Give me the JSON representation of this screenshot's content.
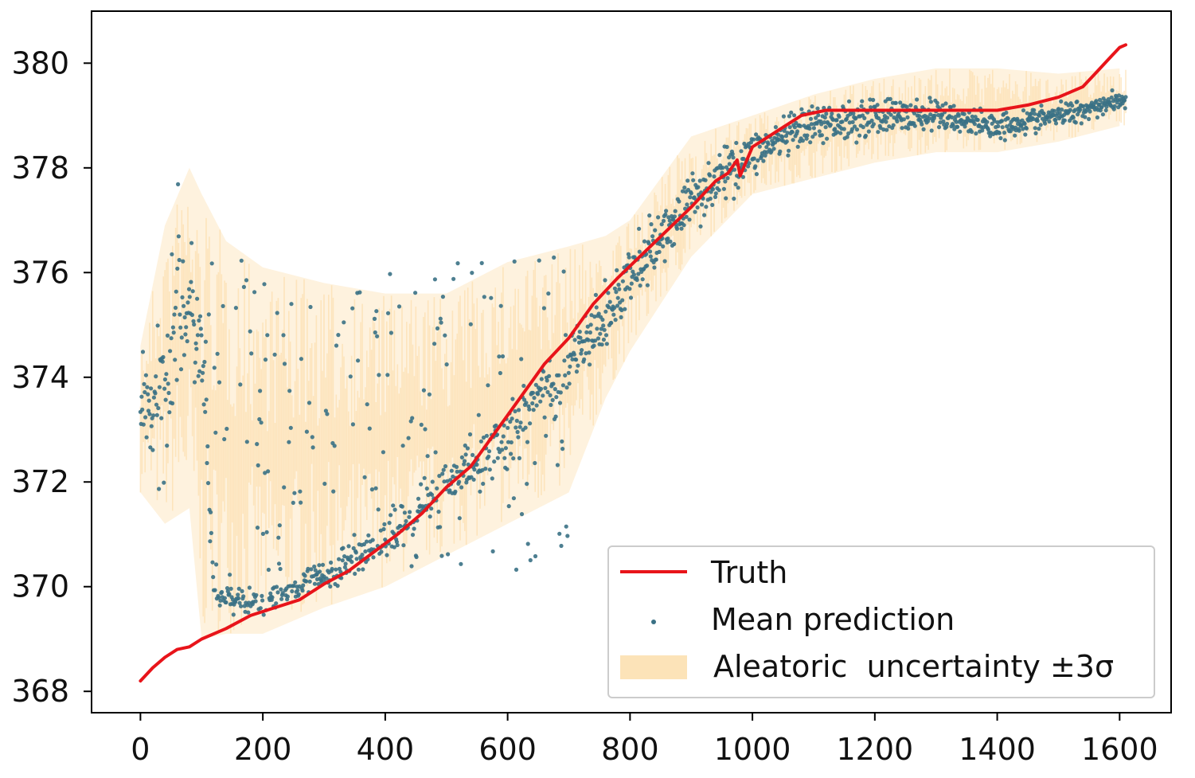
{
  "chart_data": {
    "type": "scatter",
    "title": "",
    "xlabel": "",
    "ylabel": "",
    "xlim": [
      -80,
      1640
    ],
    "ylim": [
      367.6,
      380.9
    ],
    "x_ticks": [
      0,
      200,
      400,
      600,
      800,
      1000,
      1200,
      1400,
      1600
    ],
    "x_tick_labels": [
      "0",
      "200",
      "400",
      "600",
      "800",
      "1000",
      "1200",
      "1400",
      "1600"
    ],
    "y_ticks": [
      368,
      370,
      372,
      374,
      376,
      378,
      380
    ],
    "y_tick_labels": [
      "368",
      "370",
      "372",
      "374",
      "376",
      "378",
      "380"
    ],
    "grid": false,
    "legend_position": "bottom-right",
    "legend": [
      {
        "key": "truth",
        "label": "Truth"
      },
      {
        "key": "mean",
        "label": "Mean prediction"
      },
      {
        "key": "aleatoric",
        "label": "Aleatoric  uncertainty ±3σ"
      }
    ],
    "colors": {
      "truth": "#e8141a",
      "mean": "#3a7185",
      "aleatoric": "#fbd9a0",
      "axis": "#000000",
      "legend_border": "#cccccc"
    },
    "series": [
      {
        "name": "Truth",
        "kind": "line",
        "x": [
          0,
          20,
          40,
          60,
          80,
          100,
          140,
          180,
          220,
          260,
          300,
          340,
          380,
          420,
          460,
          500,
          540,
          580,
          620,
          660,
          700,
          740,
          780,
          820,
          860,
          900,
          940,
          960,
          975,
          980,
          1000,
          1040,
          1080,
          1120,
          1200,
          1300,
          1400,
          1450,
          1500,
          1540,
          1560,
          1580,
          1600,
          1610
        ],
        "y": [
          368.2,
          368.45,
          368.65,
          368.8,
          368.85,
          369.0,
          369.2,
          369.45,
          369.6,
          369.75,
          370.05,
          370.3,
          370.65,
          371.0,
          371.4,
          371.9,
          372.3,
          372.95,
          373.6,
          374.25,
          374.75,
          375.4,
          375.9,
          376.35,
          376.8,
          377.25,
          377.75,
          377.9,
          378.15,
          377.85,
          378.4,
          378.7,
          379.0,
          379.1,
          379.1,
          379.1,
          379.1,
          379.2,
          379.35,
          379.55,
          379.8,
          380.05,
          380.3,
          380.35
        ]
      },
      {
        "name": "Mean prediction",
        "kind": "scatter",
        "count": 1600,
        "x_range": [
          0,
          1610
        ],
        "envelope": {
          "x": [
            0,
            30,
            60,
            80,
            100,
            120,
            200,
            300,
            400,
            500,
            600,
            700,
            760,
            800,
            900,
            1000,
            1100,
            1200,
            1300,
            1400,
            1500,
            1600
          ],
          "center": [
            373.7,
            373.2,
            375.6,
            375.2,
            374.6,
            369.8,
            369.7,
            370.2,
            370.9,
            371.9,
            372.9,
            374.2,
            375.1,
            375.9,
            377.4,
            378.3,
            378.8,
            379.0,
            379.0,
            378.8,
            379.0,
            379.3
          ],
          "spread": [
            0.7,
            1.3,
            1.4,
            1.2,
            1.1,
            0.2,
            0.2,
            0.25,
            0.3,
            0.35,
            0.5,
            0.6,
            0.55,
            0.45,
            0.45,
            0.35,
            0.3,
            0.3,
            0.25,
            0.2,
            0.2,
            0.15
          ]
        },
        "outlier_band": {
          "x_range": [
            100,
            700
          ],
          "y_range": [
            370.2,
            376.3
          ]
        }
      },
      {
        "name": "Aleatoric uncertainty ±3σ",
        "kind": "band",
        "x": [
          0,
          40,
          80,
          100,
          140,
          200,
          300,
          400,
          500,
          600,
          700,
          760,
          800,
          900,
          1000,
          1100,
          1200,
          1300,
          1400,
          1500,
          1600
        ],
        "lower": [
          371.8,
          371.2,
          371.5,
          369.0,
          369.1,
          369.1,
          369.6,
          370.0,
          370.6,
          371.2,
          371.8,
          373.6,
          374.5,
          376.3,
          377.5,
          377.8,
          378.1,
          378.3,
          378.3,
          378.5,
          378.8
        ],
        "upper": [
          374.6,
          376.9,
          378.0,
          377.5,
          376.6,
          376.1,
          375.8,
          375.6,
          375.6,
          376.2,
          376.5,
          376.7,
          377.0,
          378.6,
          379.0,
          379.4,
          379.7,
          379.9,
          379.9,
          379.8,
          379.9
        ]
      }
    ]
  }
}
